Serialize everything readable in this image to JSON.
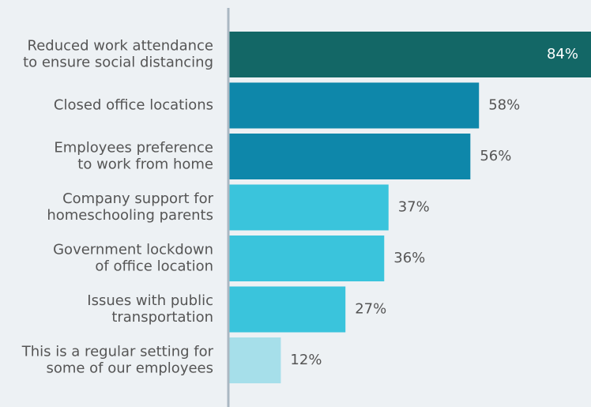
{
  "chart_data": {
    "type": "hbar",
    "categories": [
      [
        "Reduced work attendance",
        "to ensure social distancing"
      ],
      [
        "Closed office locations"
      ],
      [
        "Employees preference",
        "to work from home"
      ],
      [
        "Company support for",
        "homeschooling parents"
      ],
      [
        "Government lockdown",
        "of office location"
      ],
      [
        "Issues with public",
        "transportation"
      ],
      [
        "This is a regular setting for",
        "some of our employees"
      ]
    ],
    "values": [
      84,
      58,
      56,
      37,
      36,
      27,
      12
    ],
    "value_labels": [
      "84%",
      "58%",
      "56%",
      "37%",
      "36%",
      "27%",
      "12%"
    ],
    "colors": [
      "#136766",
      "#0e87aa",
      "#0e87aa",
      "#3ac4dc",
      "#3ac4dc",
      "#3ac4dc",
      "#a6dfea"
    ],
    "xlim": [
      0,
      84
    ]
  }
}
